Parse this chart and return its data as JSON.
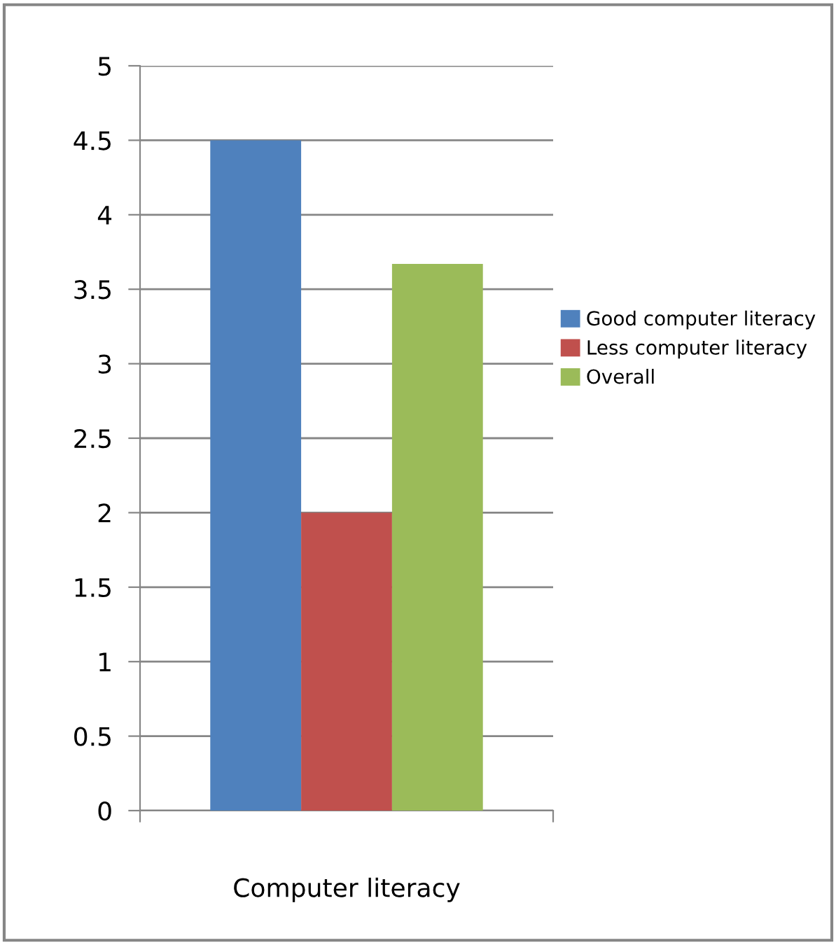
{
  "chart_data": {
    "type": "bar",
    "xlabel": "Computer literacy",
    "categories": [
      null
    ],
    "series": [
      {
        "name": "Good computer literacy",
        "color": "#4f81bd",
        "values": [
          4.5
        ]
      },
      {
        "name": "Less computer literacy",
        "color": "#c0504d",
        "values": [
          2.0
        ]
      },
      {
        "name": "Overall",
        "color": "#9bbb59",
        "values": [
          3.67
        ]
      }
    ],
    "ylim": [
      0,
      5
    ],
    "yticks": [
      0,
      0.5,
      1,
      1.5,
      2,
      2.5,
      3,
      3.5,
      4,
      4.5,
      5
    ],
    "grid": "y",
    "legend": "right"
  }
}
